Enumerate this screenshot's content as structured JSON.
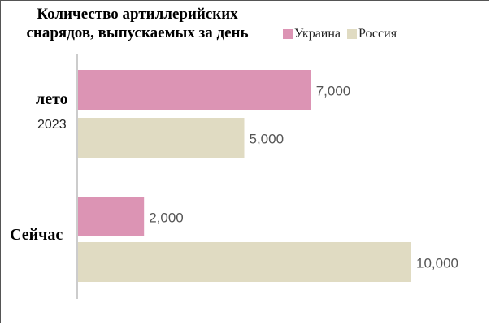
{
  "chart_data": {
    "type": "bar",
    "orientation": "horizontal",
    "title": "Количество артиллерийских снарядов, выпускаемых за день",
    "categories": [
      {
        "main": "лето",
        "sub": "2023"
      },
      {
        "main": "Сейчас",
        "sub": ""
      }
    ],
    "series": [
      {
        "name": "Украина",
        "color": "#dc94b4",
        "values": [
          7000,
          2000
        ],
        "labels": [
          "7,000",
          "2,000"
        ]
      },
      {
        "name": "Россия",
        "color": "#e0dbc2",
        "values": [
          5000,
          10000
        ],
        "labels": [
          "5,000",
          "10,000"
        ]
      }
    ],
    "xlim": [
      0,
      10000
    ],
    "grid": false,
    "legend_position": "top-right"
  }
}
